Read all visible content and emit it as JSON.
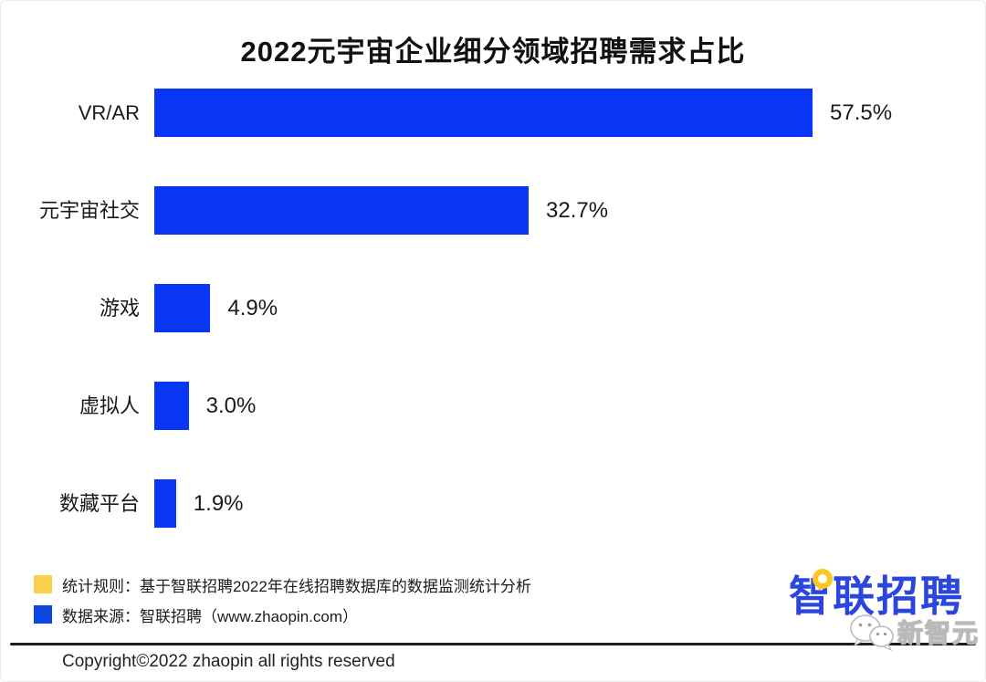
{
  "title": "2022元宇宙企业细分领域招聘需求占比",
  "chart_data": {
    "type": "bar",
    "orientation": "horizontal",
    "title": "2022元宇宙企业细分领域招聘需求占比",
    "categories": [
      "VR/AR",
      "元宇宙社交",
      "游戏",
      "虚拟人",
      "数藏平台"
    ],
    "values": [
      57.5,
      32.7,
      4.9,
      3.0,
      1.9
    ],
    "value_labels": [
      "57.5%",
      "32.7%",
      "4.9%",
      "3.0%",
      "1.9%"
    ],
    "unit": "%",
    "xlim": [
      0,
      60
    ],
    "grid": false,
    "bar_color": "#0836f4",
    "legend_position": "bottom-left"
  },
  "legend": {
    "items": [
      {
        "color": "#fad04f",
        "label": "统计规则：基于智联招聘2022年在线招聘数据库的数据监测统计分析"
      },
      {
        "color": "#0b46e0",
        "label": "数据来源：智联招聘（www.zhaopin.com）"
      }
    ]
  },
  "footer": {
    "logo_text": "智联招聘",
    "watermark_text": "新智元",
    "copyright": "Copyright©2022 zhaopin all rights reserved"
  },
  "colors": {
    "bar": "#0836f4",
    "legend_yellow": "#fad04f",
    "legend_blue": "#0b46e0",
    "logo_blue": "#2a46de",
    "logo_yellow": "#fdc722",
    "text": "#1a1a1a"
  }
}
